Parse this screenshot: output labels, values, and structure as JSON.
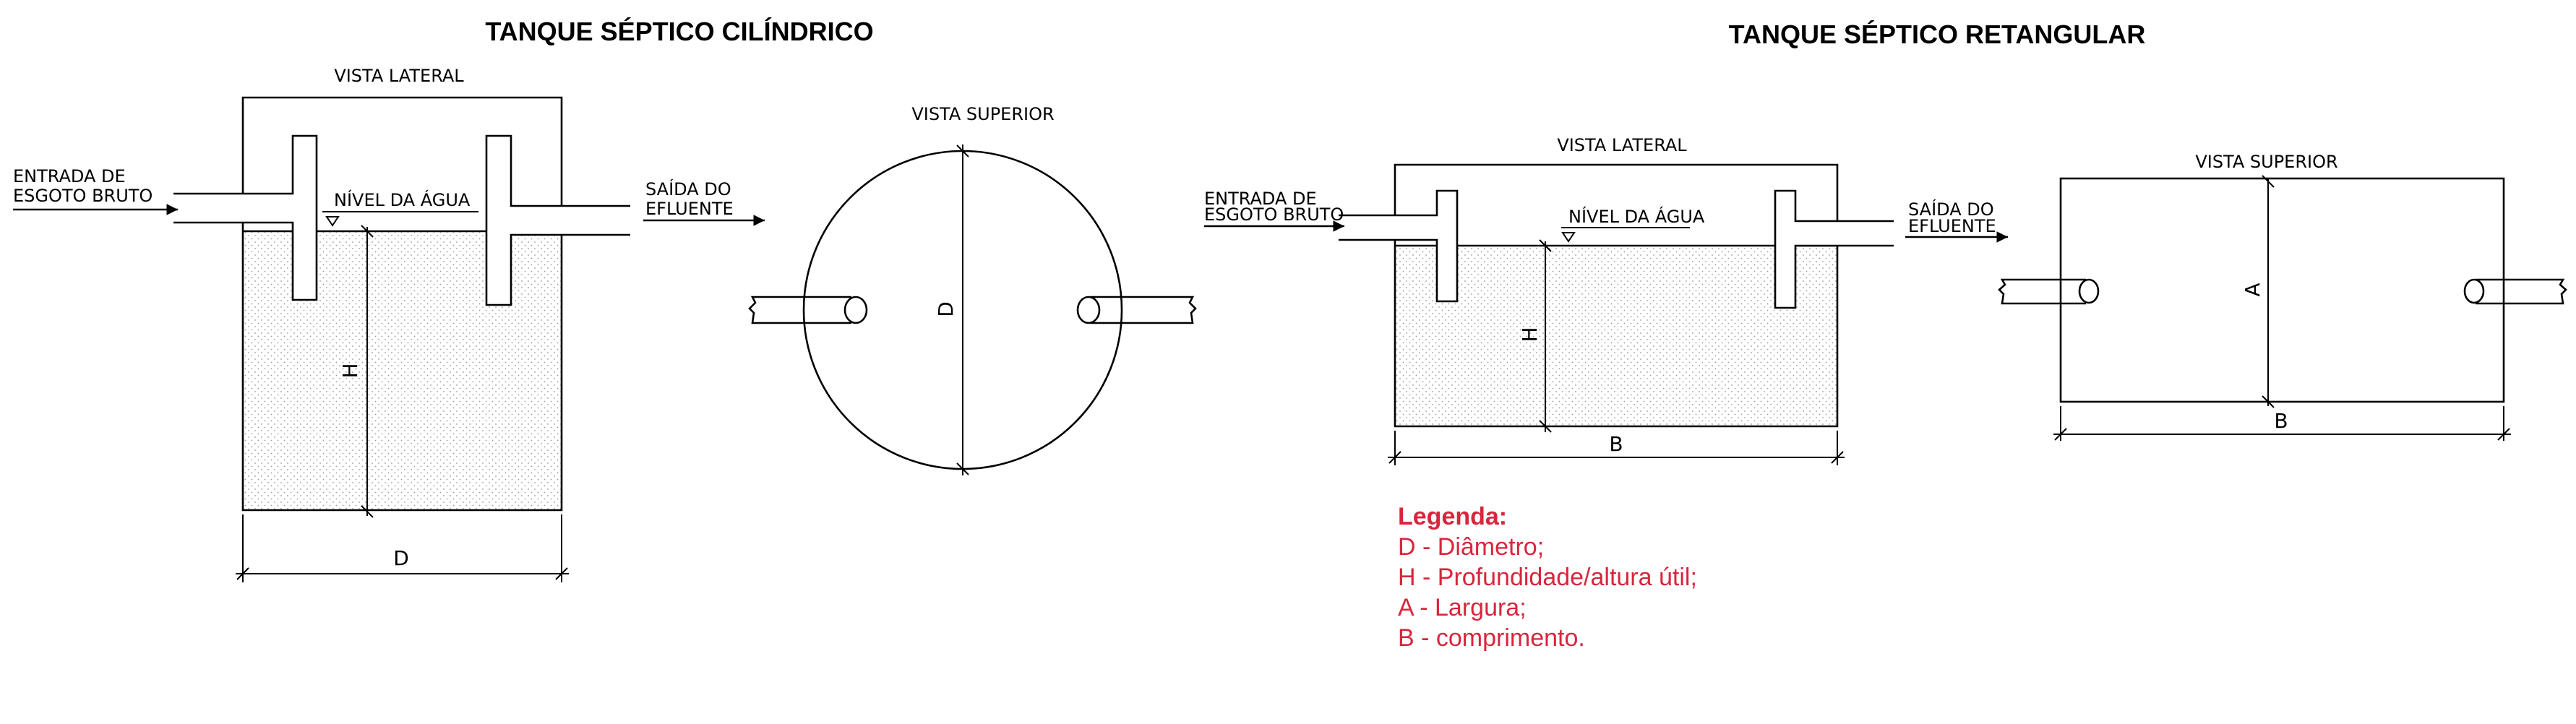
{
  "cyl": {
    "title": "TANQUE SÉPTICO CILÍNDRICO",
    "side_view": "VISTA  LATERAL",
    "inlet_1": "ENTRADA  DE",
    "inlet_2": "ESGOTO  BRUTO",
    "water_level": "NÍVEL  DA  ÁGUA",
    "outlet_1": "SAÍDA  DO",
    "outlet_2": "EFLUENTE",
    "dim_h": "H",
    "dim_d": "D",
    "top_view": "VISTA  SUPERIOR",
    "top_dim_d": "D"
  },
  "rect": {
    "title": "TANQUE SÉPTICO RETANGULAR",
    "side_view": "VISTA  LATERAL",
    "inlet_1": "ENTRADA  DE",
    "inlet_2": "ESGOTO  BRUTO",
    "water_level": "NÍVEL  DA  ÁGUA",
    "outlet_1": "SAÍDA  DO",
    "outlet_2": "EFLUENTE",
    "dim_h": "H",
    "dim_b": "B",
    "top_view": "VISTA  SUPERIOR",
    "top_dim_a": "A",
    "top_dim_b": "B"
  },
  "legend": {
    "title": "Legenda:",
    "items": [
      "D - Diâmetro;",
      "H - Profundidade/altura útil;",
      "A - Largura;",
      "B - comprimento."
    ]
  },
  "colors": {
    "legend": "#d7263d",
    "lines": "#000000"
  }
}
